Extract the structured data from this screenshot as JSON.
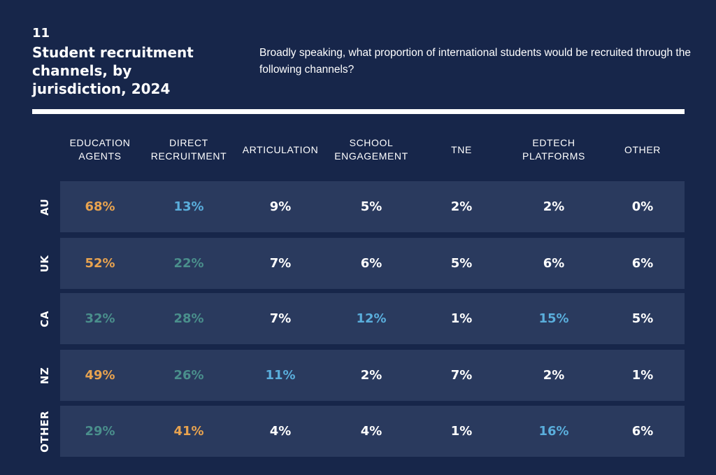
{
  "figure": {
    "number": "11",
    "title": "Student recruitment channels, by jurisdiction, 2024",
    "question": "Broadly speaking, what proportion of international students would be recruited through the following channels?"
  },
  "colors": {
    "background": "#17264a",
    "row_band": "#2a3a5e",
    "text": "#ffffff",
    "highest": "#e8a34f",
    "second": "#4a8f8c",
    "third": "#5aaedc"
  },
  "chart_data": {
    "type": "table",
    "columns": [
      "EDUCATION\nAGENTS",
      "DIRECT\nRECRUITMENT",
      "ARTICULATION",
      "SCHOOL\nENGAGEMENT",
      "TNE",
      "EDTECH\nPLATFORMS",
      "OTHER"
    ],
    "rows": [
      {
        "label": "AU",
        "values": [
          "68%",
          "13%",
          "9%",
          "5%",
          "2%",
          "2%",
          "0%"
        ],
        "highlight": [
          "highest",
          "third",
          null,
          null,
          null,
          null,
          null
        ]
      },
      {
        "label": "UK",
        "values": [
          "52%",
          "22%",
          "7%",
          "6%",
          "5%",
          "6%",
          "6%"
        ],
        "highlight": [
          "highest",
          "second",
          null,
          null,
          null,
          null,
          null
        ]
      },
      {
        "label": "CA",
        "values": [
          "32%",
          "28%",
          "7%",
          "12%",
          "1%",
          "15%",
          "5%"
        ],
        "highlight": [
          "second",
          "second",
          null,
          "third",
          null,
          "third",
          null
        ]
      },
      {
        "label": "NZ",
        "values": [
          "49%",
          "26%",
          "11%",
          "2%",
          "7%",
          "2%",
          "1%"
        ],
        "highlight": [
          "highest",
          "second",
          "third",
          null,
          null,
          null,
          null
        ]
      },
      {
        "label": "OTHER",
        "values": [
          "29%",
          "41%",
          "4%",
          "4%",
          "1%",
          "16%",
          "6%"
        ],
        "highlight": [
          "second",
          "highest",
          null,
          null,
          null,
          "third",
          null
        ]
      }
    ]
  }
}
